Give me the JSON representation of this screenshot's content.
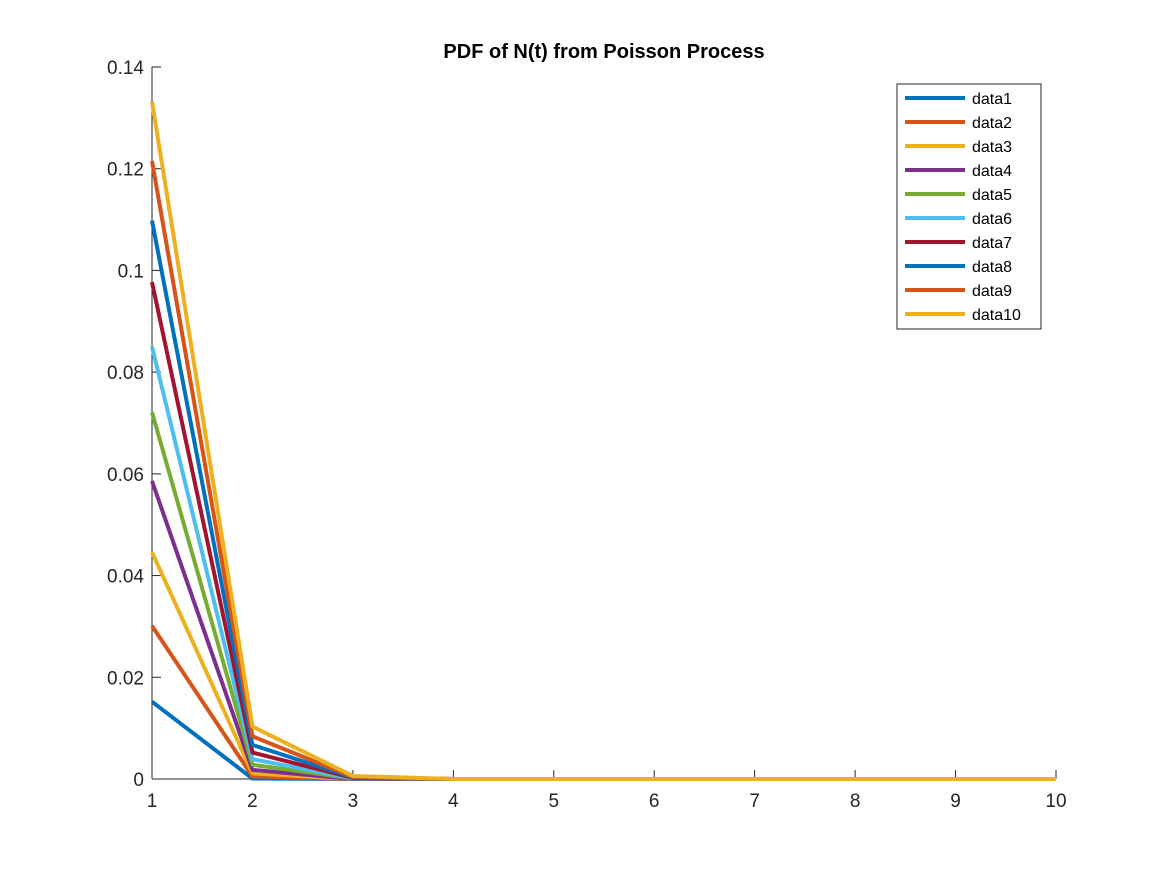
{
  "chart_data": {
    "type": "line",
    "title": "PDF of N(t) from Poisson Process",
    "xlabel": "",
    "ylabel": "",
    "xlim": [
      1,
      10
    ],
    "ylim": [
      0,
      0.14
    ],
    "x": [
      1,
      2,
      3,
      4,
      5,
      6,
      7,
      8,
      9,
      10
    ],
    "xticks": [
      "1",
      "2",
      "3",
      "4",
      "5",
      "6",
      "7",
      "8",
      "9",
      "10"
    ],
    "yticks": [
      "0",
      "0.02",
      "0.04",
      "0.06",
      "0.08",
      "0.1",
      "0.12",
      "0.14"
    ],
    "grid": false,
    "legend_position": "top-right",
    "series": [
      {
        "name": "data1",
        "color": "#0072BD",
        "values": [
          0.0152,
          0.0001,
          0.0,
          0,
          0,
          0,
          0,
          0,
          0,
          0
        ]
      },
      {
        "name": "data2",
        "color": "#D95319",
        "values": [
          0.0301,
          0.0005,
          0.0,
          0,
          0,
          0,
          0,
          0,
          0,
          0
        ]
      },
      {
        "name": "data3",
        "color": "#EDB120",
        "values": [
          0.0446,
          0.0011,
          0.0,
          0,
          0,
          0,
          0,
          0,
          0,
          0
        ]
      },
      {
        "name": "data4",
        "color": "#7E2F8E",
        "values": [
          0.0586,
          0.0018,
          0.0,
          0,
          0,
          0,
          0,
          0,
          0,
          0
        ]
      },
      {
        "name": "data5",
        "color": "#77AC30",
        "values": [
          0.0721,
          0.0028,
          0.0001,
          0,
          0,
          0,
          0,
          0,
          0,
          0
        ]
      },
      {
        "name": "data6",
        "color": "#4DBEEE",
        "values": [
          0.085,
          0.0039,
          0.0001,
          0,
          0,
          0,
          0,
          0,
          0,
          0
        ]
      },
      {
        "name": "data7",
        "color": "#A2142F",
        "values": [
          0.0977,
          0.0052,
          0.0002,
          0,
          0,
          0,
          0,
          0,
          0,
          0
        ]
      },
      {
        "name": "data8",
        "color": "#0072BD",
        "values": [
          0.1098,
          0.0067,
          0.0003,
          0,
          0,
          0,
          0,
          0,
          0,
          0
        ]
      },
      {
        "name": "data9",
        "color": "#D95319",
        "values": [
          0.1215,
          0.0084,
          0.0004,
          0,
          0,
          0,
          0,
          0,
          0,
          0
        ]
      },
      {
        "name": "data10",
        "color": "#EDB120",
        "values": [
          0.1332,
          0.0103,
          0.0006,
          0,
          0,
          0,
          0,
          0,
          0,
          0
        ]
      }
    ]
  }
}
